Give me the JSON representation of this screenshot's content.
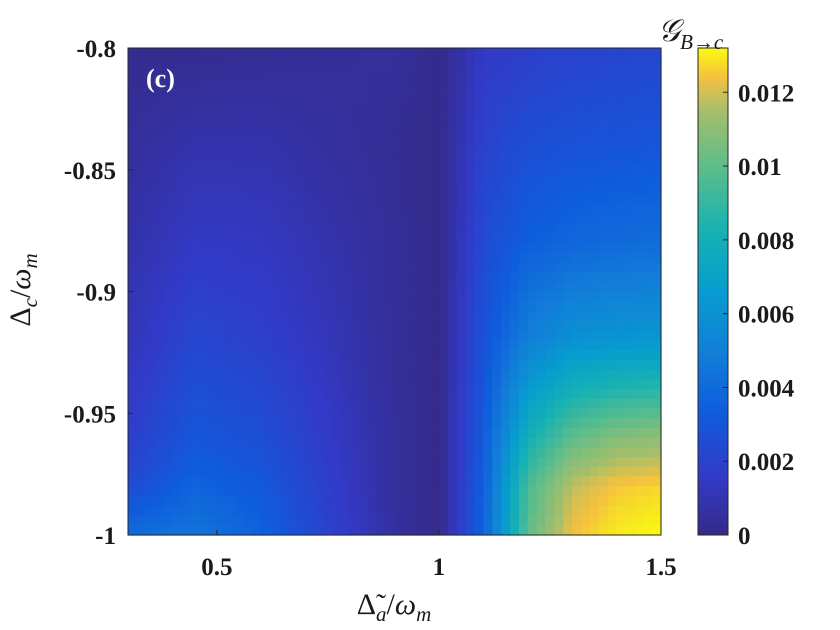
{
  "chart_data": {
    "type": "heatmap",
    "panel_label": "(c)",
    "xlabel": "Δ̃_a/ω_m",
    "ylabel": "Δ_c/ω_m",
    "colorbar_label": "G_{B→c}",
    "xlim": [
      0.3,
      1.5
    ],
    "ylim": [
      -1.0,
      -0.8
    ],
    "clim": [
      0,
      0.0132
    ],
    "colormap": "parula",
    "x_ticks": [
      {
        "value": 0.5,
        "label": "0.5"
      },
      {
        "value": 1.0,
        "label": "1"
      },
      {
        "value": 1.5,
        "label": "1.5"
      }
    ],
    "y_ticks": [
      {
        "value": -0.8,
        "label": "-0.8"
      },
      {
        "value": -0.85,
        "label": "-0.85"
      },
      {
        "value": -0.9,
        "label": "-0.9"
      },
      {
        "value": -0.95,
        "label": "-0.95"
      },
      {
        "value": -1.0,
        "label": "-1"
      }
    ],
    "colorbar_ticks": [
      {
        "value": 0,
        "label": "0"
      },
      {
        "value": 0.002,
        "label": "0.002"
      },
      {
        "value": 0.004,
        "label": "0.004"
      },
      {
        "value": 0.006,
        "label": "0.006"
      },
      {
        "value": 0.008,
        "label": "0.008"
      },
      {
        "value": 0.01,
        "label": "0.01"
      },
      {
        "value": 0.012,
        "label": "0.012"
      }
    ],
    "x": [
      0.3,
      0.45,
      0.6,
      0.75,
      0.9,
      1.0,
      1.1,
      1.2,
      1.3,
      1.4,
      1.5
    ],
    "y": [
      -0.8,
      -0.84,
      -0.88,
      -0.92,
      -0.96,
      -0.98,
      -1.0
    ],
    "z": [
      [
        0.0002,
        0.0002,
        0.0003,
        0.0004,
        0.0005,
        0.0001,
        0.0015,
        0.0018,
        0.002,
        0.0021,
        0.0022
      ],
      [
        0.0005,
        0.0009,
        0.0009,
        0.0006,
        0.0003,
        0.0001,
        0.002,
        0.0026,
        0.0028,
        0.0029,
        0.003
      ],
      [
        0.0008,
        0.0015,
        0.0014,
        0.0009,
        0.0004,
        0.0001,
        0.0024,
        0.0034,
        0.0038,
        0.004,
        0.0041
      ],
      [
        0.0012,
        0.0022,
        0.0019,
        0.0012,
        0.0004,
        0.0001,
        0.0028,
        0.005,
        0.006,
        0.0062,
        0.0063
      ],
      [
        0.0018,
        0.003,
        0.0026,
        0.0016,
        0.0005,
        0.0001,
        0.0032,
        0.008,
        0.01,
        0.0108,
        0.011
      ],
      [
        0.0024,
        0.0036,
        0.0031,
        0.0018,
        0.0005,
        0.0001,
        0.0034,
        0.0095,
        0.0118,
        0.0125,
        0.0127
      ],
      [
        0.004,
        0.0045,
        0.0036,
        0.002,
        0.0006,
        0.0001,
        0.0036,
        0.01,
        0.0124,
        0.013,
        0.0132
      ]
    ]
  }
}
